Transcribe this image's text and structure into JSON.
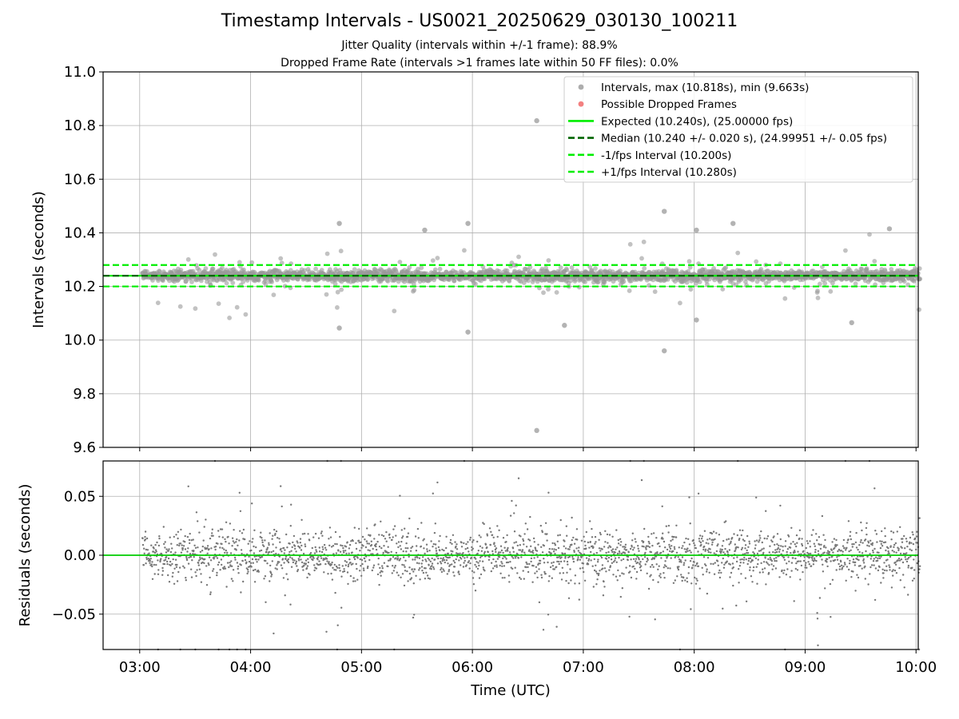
{
  "chart_data": {
    "title": "Timestamp Intervals - US0021_20250629_030130_100211",
    "subtitle_lines": [
      "Jitter Quality (intervals within +/-1 frame): 88.9%",
      "Dropped Frame Rate (intervals >1 frames late within 50 FF files): 0.0%"
    ],
    "x_axis": {
      "label": "Time (UTC)",
      "tick_labels": [
        "03:00",
        "04:00",
        "05:00",
        "06:00",
        "07:00",
        "08:00",
        "09:00",
        "10:00"
      ],
      "tick_hours": [
        3,
        4,
        5,
        6,
        7,
        8,
        9,
        10
      ],
      "range_hours": [
        2.67,
        10.02
      ],
      "data_start_hours": 3.025,
      "data_end_hours": 10.036
    },
    "panels": [
      {
        "id": "intervals",
        "type": "scatter",
        "ylabel": "Intervals (seconds)",
        "ylim": [
          9.6,
          11.0
        ],
        "y_ticks": [
          9.6,
          9.8,
          10.0,
          10.2,
          10.4,
          10.6,
          10.8,
          11.0
        ],
        "y_tick_labels": [
          "9.6",
          "9.8",
          "10.0",
          "10.2",
          "10.4",
          "10.6",
          "10.8",
          "11.0"
        ],
        "grid": true,
        "legend_position": "top-right",
        "series": [
          {
            "name": "Intervals, max (10.818s), min (9.663s)",
            "kind": "scatter",
            "color": "#999999",
            "count_estimate": 2460,
            "core_spread_seconds": 0.02
          },
          {
            "name": "Possible Dropped Frames",
            "kind": "scatter",
            "color": "#f06060",
            "count": 0
          },
          {
            "name": "Expected (10.240s), (25.00000 fps)",
            "kind": "hline",
            "y": 10.24,
            "color": "#00ee00",
            "style": "solid"
          },
          {
            "name": "Median (10.240 +/- 0.020 s), (24.99951 +/- 0.05 fps)",
            "kind": "hline",
            "y": 10.24,
            "color": "#006400",
            "style": "dashed"
          },
          {
            "name": "-1/fps Interval (10.200s)",
            "kind": "hline",
            "y": 10.2,
            "color": "#00ee00",
            "style": "dashed"
          },
          {
            "name": "+1/fps Interval (10.280s)",
            "kind": "hline",
            "y": 10.28,
            "color": "#00ee00",
            "style": "dashed"
          }
        ],
        "notable_points": [
          {
            "x_hours": 6.58,
            "y": 10.818
          },
          {
            "x_hours": 6.58,
            "y": 9.663
          },
          {
            "x_hours": 7.73,
            "y": 9.96
          },
          {
            "x_hours": 4.8,
            "y": 10.435
          },
          {
            "x_hours": 5.96,
            "y": 10.435
          },
          {
            "x_hours": 7.73,
            "y": 10.48
          },
          {
            "x_hours": 8.35,
            "y": 10.435
          },
          {
            "x_hours": 4.8,
            "y": 10.045
          },
          {
            "x_hours": 5.96,
            "y": 10.03
          },
          {
            "x_hours": 6.83,
            "y": 10.055
          },
          {
            "x_hours": 9.42,
            "y": 10.065
          },
          {
            "x_hours": 8.02,
            "y": 10.075
          },
          {
            "x_hours": 5.57,
            "y": 10.41
          },
          {
            "x_hours": 8.02,
            "y": 10.41
          },
          {
            "x_hours": 9.76,
            "y": 10.415
          }
        ]
      },
      {
        "id": "residuals",
        "type": "scatter",
        "ylabel": "Residuals (seconds)",
        "ylim": [
          -0.08,
          0.08
        ],
        "y_ticks": [
          -0.05,
          0.0,
          0.05
        ],
        "y_tick_labels": [
          "−0.05",
          "0.00",
          "0.05"
        ],
        "grid": true,
        "series": [
          {
            "name": "Residuals",
            "kind": "scatter",
            "color": "#777777",
            "count_estimate": 2460,
            "spread_seconds": 0.02
          },
          {
            "name": "Zero",
            "kind": "hline",
            "y": 0.0,
            "color": "#00cc00",
            "style": "solid"
          }
        ]
      }
    ]
  }
}
